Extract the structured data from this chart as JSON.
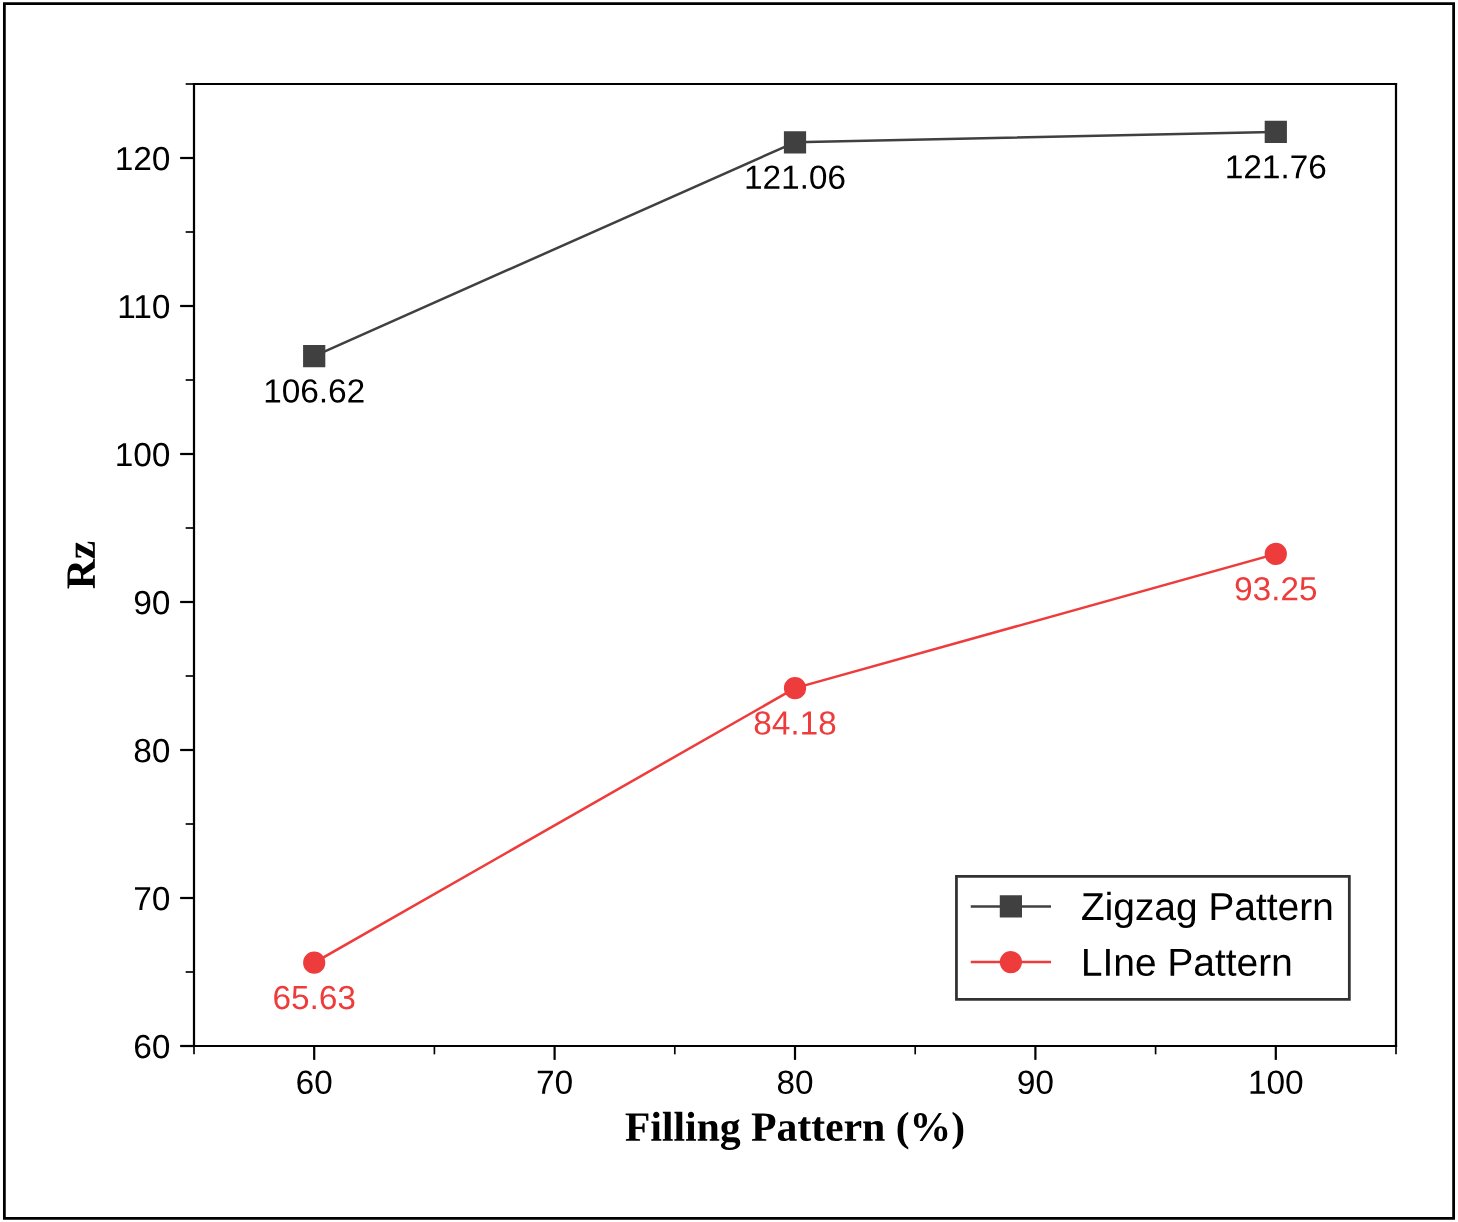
{
  "chart_data": {
    "type": "line",
    "xlabel": "Filling Pattern (%)",
    "ylabel": "Rz",
    "x": [
      60,
      80,
      100
    ],
    "series": [
      {
        "name": "Zigzag Pattern",
        "color": "#404040",
        "marker": "square",
        "values": [
          106.62,
          121.06,
          121.76
        ]
      },
      {
        "name": "LIne Pattern",
        "color": "#ee3b3b",
        "marker": "circle",
        "values": [
          65.63,
          84.18,
          93.25
        ]
      }
    ],
    "xlim": [
      55,
      105
    ],
    "xticks": [
      60,
      70,
      80,
      90,
      100
    ],
    "ylim": [
      60,
      125
    ],
    "yticks": [
      60,
      70,
      80,
      90,
      100,
      110,
      120
    ],
    "data_labels": true,
    "legend": "bottom right",
    "grid": false,
    "line_style": "solid"
  }
}
